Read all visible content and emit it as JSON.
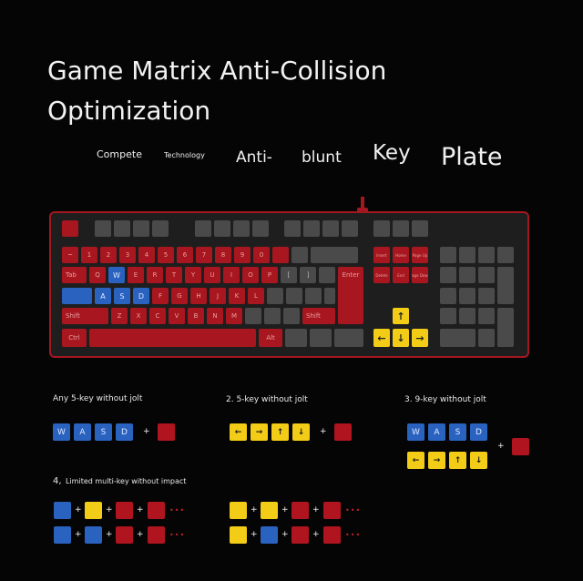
{
  "title_line1": "Game Matrix Anti-Collision",
  "title_line2": "Optimization",
  "tags": [
    "Compete",
    "Technology",
    "Anti-",
    "blunt",
    "Key",
    "Plate"
  ],
  "keyboard": {
    "f_row": [
      "~",
      "1",
      "2",
      "3",
      "4",
      "5",
      "6",
      "7",
      "8",
      "9",
      "0"
    ],
    "q_row": [
      "Tab",
      "Q",
      "W",
      "E",
      "R",
      "T",
      "Y",
      "U",
      "I",
      "O",
      "P",
      "[",
      "]"
    ],
    "a_row": [
      "Caps",
      "A",
      "S",
      "D",
      "F",
      "G",
      "H",
      "J",
      "K",
      "L"
    ],
    "z_row": [
      "Shift",
      "Z",
      "X",
      "C",
      "V",
      "B",
      "N",
      "M"
    ],
    "bottom": [
      "Ctrl",
      "Alt"
    ],
    "enter": "Enter",
    "shift_r": "Shift",
    "nav_row1": [
      "Insert",
      "Home",
      "Page Up"
    ],
    "nav_row2": [
      "Delete",
      "End",
      "Page Down"
    ],
    "arrows": [
      "↑",
      "←",
      "↓",
      "→"
    ]
  },
  "captions": {
    "c1": "Any 5-key without jolt",
    "c2": "2. 5-key without jolt",
    "c3": "3. 9-key without jolt",
    "c4_num": "4,",
    "c4": "Limited multi-key without impact"
  },
  "combos": {
    "wasd": [
      "W",
      "A",
      "S",
      "D"
    ],
    "arrows": [
      "←",
      "→",
      "↑",
      "↓"
    ],
    "plus": "+",
    "dots": "•••"
  },
  "colors": {
    "red": "#a8161f",
    "blue": "#2a62c0",
    "yellow": "#f2cc16",
    "gray": "#4a4a4a"
  }
}
